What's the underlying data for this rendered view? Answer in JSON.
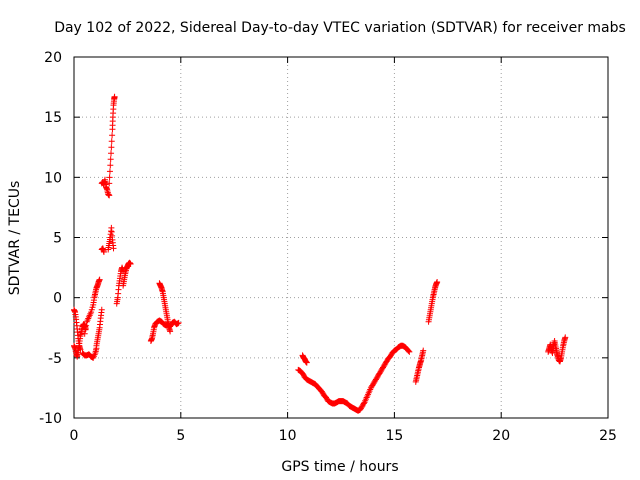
{
  "chart_data": {
    "type": "scatter",
    "title": "Day 102 of 2022, Sidereal Day-to-day VTEC variation (SDTVAR) for receiver mabs",
    "xlabel": "GPS time / hours",
    "ylabel": "SDTVAR / TECUs",
    "xlim": [
      0,
      25
    ],
    "ylim": [
      -10,
      20
    ],
    "xticks": [
      0,
      5,
      10,
      15,
      20,
      25
    ],
    "yticks": [
      -10,
      -5,
      0,
      5,
      10,
      15,
      20
    ],
    "grid": true,
    "marker": "+",
    "color": "#ff0000",
    "segments": [
      [
        [
          0.0,
          -1.0
        ],
        [
          0.05,
          -1.2
        ],
        [
          0.1,
          -1.8
        ],
        [
          0.15,
          -2.6
        ],
        [
          0.2,
          -3.4
        ],
        [
          0.25,
          -4.0
        ],
        [
          0.3,
          -4.3
        ]
      ],
      [
        [
          0.0,
          -4.0
        ],
        [
          0.05,
          -4.2
        ],
        [
          0.1,
          -4.6
        ],
        [
          0.15,
          -4.9
        ],
        [
          0.2,
          -4.4
        ],
        [
          0.25,
          -3.8
        ],
        [
          0.3,
          -3.2
        ],
        [
          0.35,
          -2.8
        ],
        [
          0.4,
          -2.4
        ],
        [
          0.45,
          -2.2
        ],
        [
          0.5,
          -2.3
        ],
        [
          0.55,
          -2.6
        ]
      ],
      [
        [
          0.4,
          -4.6
        ],
        [
          0.5,
          -4.8
        ],
        [
          0.6,
          -4.8
        ],
        [
          0.7,
          -4.7
        ],
        [
          0.8,
          -4.9
        ],
        [
          0.9,
          -5.0
        ],
        [
          1.0,
          -4.6
        ],
        [
          1.05,
          -4.2
        ]
      ],
      [
        [
          0.5,
          -3.0
        ],
        [
          0.6,
          -2.0
        ],
        [
          0.7,
          -1.6
        ],
        [
          0.8,
          -1.2
        ],
        [
          0.9,
          -0.6
        ],
        [
          0.95,
          0.0
        ],
        [
          1.0,
          0.4
        ],
        [
          1.05,
          0.8
        ],
        [
          1.1,
          1.0
        ],
        [
          1.15,
          1.3
        ],
        [
          1.2,
          1.5
        ]
      ],
      [
        [
          1.05,
          -4.0
        ],
        [
          1.1,
          -3.5
        ],
        [
          1.15,
          -3.0
        ],
        [
          1.2,
          -2.5
        ],
        [
          1.25,
          -1.7
        ],
        [
          1.3,
          -1.0
        ]
      ],
      [
        [
          1.3,
          4.0
        ],
        [
          1.35,
          4.1
        ],
        [
          1.4,
          3.8
        ]
      ],
      [
        [
          1.3,
          9.5
        ],
        [
          1.35,
          9.6
        ],
        [
          1.4,
          9.4
        ],
        [
          1.45,
          9.8
        ],
        [
          1.5,
          9.2
        ],
        [
          1.55,
          9.0
        ],
        [
          1.6,
          8.6
        ],
        [
          1.65,
          8.5
        ]
      ],
      [
        [
          1.6,
          4.0
        ],
        [
          1.65,
          4.5
        ],
        [
          1.7,
          5.0
        ],
        [
          1.75,
          5.8
        ],
        [
          1.8,
          4.8
        ],
        [
          1.85,
          4.1
        ]
      ],
      [
        [
          1.65,
          9.5
        ],
        [
          1.7,
          11.0
        ],
        [
          1.75,
          12.5
        ],
        [
          1.8,
          14.0
        ],
        [
          1.82,
          15.0
        ],
        [
          1.85,
          16.0
        ],
        [
          1.88,
          16.5
        ],
        [
          1.9,
          16.7
        ]
      ],
      [
        [
          2.0,
          -0.5
        ],
        [
          2.05,
          0.0
        ],
        [
          2.1,
          1.0
        ],
        [
          2.15,
          1.6
        ],
        [
          2.2,
          2.2
        ],
        [
          2.25,
          2.5
        ],
        [
          2.3,
          2.2
        ]
      ],
      [
        [
          2.3,
          1.0
        ],
        [
          2.35,
          1.5
        ],
        [
          2.4,
          2.0
        ],
        [
          2.45,
          2.4
        ],
        [
          2.5,
          2.6
        ],
        [
          2.55,
          2.8
        ],
        [
          2.6,
          2.9
        ],
        [
          2.65,
          2.8
        ]
      ],
      [
        [
          3.6,
          -3.6
        ],
        [
          3.65,
          -3.4
        ],
        [
          3.7,
          -3.0
        ],
        [
          3.75,
          -2.5
        ],
        [
          3.8,
          -2.2
        ],
        [
          3.9,
          -2.0
        ],
        [
          4.0,
          -1.9
        ],
        [
          4.1,
          -2.0
        ],
        [
          4.2,
          -2.2
        ],
        [
          4.3,
          -2.3
        ],
        [
          4.4,
          -2.2
        ],
        [
          4.5,
          -2.4
        ],
        [
          4.6,
          -2.1
        ],
        [
          4.7,
          -2.0
        ],
        [
          4.8,
          -2.2
        ],
        [
          4.9,
          -2.1
        ]
      ],
      [
        [
          4.0,
          1.2
        ],
        [
          4.05,
          1.0
        ],
        [
          4.1,
          0.8
        ],
        [
          4.15,
          0.5
        ],
        [
          4.2,
          0.0
        ],
        [
          4.25,
          -0.5
        ],
        [
          4.3,
          -1.0
        ],
        [
          4.35,
          -1.5
        ],
        [
          4.4,
          -2.0
        ],
        [
          4.45,
          -2.5
        ],
        [
          4.5,
          -2.8
        ]
      ],
      [
        [
          10.5,
          -6.0
        ],
        [
          10.6,
          -6.1
        ],
        [
          10.7,
          -6.3
        ],
        [
          10.8,
          -6.6
        ],
        [
          10.9,
          -6.8
        ],
        [
          11.0,
          -6.9
        ],
        [
          11.1,
          -7.0
        ],
        [
          11.2,
          -7.1
        ],
        [
          11.3,
          -7.2
        ],
        [
          11.4,
          -7.4
        ],
        [
          11.5,
          -7.6
        ],
        [
          11.6,
          -7.8
        ],
        [
          11.7,
          -8.1
        ],
        [
          11.8,
          -8.3
        ],
        [
          11.9,
          -8.6
        ],
        [
          12.0,
          -8.7
        ],
        [
          12.1,
          -8.8
        ],
        [
          12.2,
          -8.8
        ],
        [
          12.3,
          -8.7
        ],
        [
          12.4,
          -8.6
        ],
        [
          12.5,
          -8.6
        ],
        [
          12.6,
          -8.6
        ],
        [
          12.7,
          -8.7
        ],
        [
          12.8,
          -8.8
        ],
        [
          12.9,
          -9.0
        ],
        [
          13.0,
          -9.1
        ],
        [
          13.1,
          -9.2
        ],
        [
          13.2,
          -9.3
        ],
        [
          13.3,
          -9.4
        ],
        [
          13.4,
          -9.3
        ],
        [
          13.5,
          -9.0
        ],
        [
          13.6,
          -8.7
        ],
        [
          13.7,
          -8.3
        ],
        [
          13.8,
          -7.9
        ],
        [
          13.9,
          -7.5
        ],
        [
          14.0,
          -7.2
        ],
        [
          14.1,
          -6.9
        ],
        [
          14.2,
          -6.6
        ],
        [
          14.3,
          -6.3
        ],
        [
          14.4,
          -6.0
        ],
        [
          14.5,
          -5.7
        ],
        [
          14.6,
          -5.4
        ],
        [
          14.7,
          -5.1
        ],
        [
          14.8,
          -4.9
        ],
        [
          14.9,
          -4.6
        ],
        [
          15.0,
          -4.4
        ],
        [
          15.1,
          -4.3
        ],
        [
          15.2,
          -4.1
        ],
        [
          15.3,
          -4.0
        ],
        [
          15.4,
          -4.0
        ],
        [
          15.5,
          -4.1
        ],
        [
          15.6,
          -4.3
        ],
        [
          15.7,
          -4.5
        ]
      ],
      [
        [
          10.7,
          -4.8
        ],
        [
          10.75,
          -5.0
        ],
        [
          10.8,
          -5.1
        ],
        [
          10.85,
          -5.3
        ],
        [
          10.9,
          -5.4
        ]
      ],
      [
        [
          16.0,
          -7.0
        ],
        [
          16.05,
          -6.6
        ],
        [
          16.1,
          -6.2
        ],
        [
          16.15,
          -5.8
        ],
        [
          16.2,
          -5.5
        ],
        [
          16.25,
          -5.2
        ],
        [
          16.3,
          -4.8
        ],
        [
          16.35,
          -4.4
        ]
      ],
      [
        [
          16.6,
          -2.0
        ],
        [
          16.65,
          -1.5
        ],
        [
          16.7,
          -1.0
        ],
        [
          16.75,
          -0.5
        ],
        [
          16.8,
          0.0
        ],
        [
          16.85,
          0.4
        ],
        [
          16.9,
          0.8
        ],
        [
          16.95,
          1.1
        ],
        [
          17.0,
          1.3
        ]
      ],
      [
        [
          22.2,
          -4.5
        ],
        [
          22.25,
          -4.2
        ],
        [
          22.3,
          -3.9
        ],
        [
          22.35,
          -4.3
        ],
        [
          22.4,
          -4.6
        ],
        [
          22.45,
          -4.0
        ],
        [
          22.5,
          -3.6
        ],
        [
          22.55,
          -4.1
        ],
        [
          22.6,
          -4.5
        ]
      ],
      [
        [
          22.6,
          -4.6
        ],
        [
          22.65,
          -4.9
        ],
        [
          22.7,
          -5.2
        ],
        [
          22.75,
          -5.3
        ],
        [
          22.8,
          -5.0
        ],
        [
          22.85,
          -4.5
        ],
        [
          22.9,
          -4.0
        ],
        [
          22.95,
          -3.6
        ],
        [
          23.0,
          -3.3
        ]
      ]
    ]
  }
}
